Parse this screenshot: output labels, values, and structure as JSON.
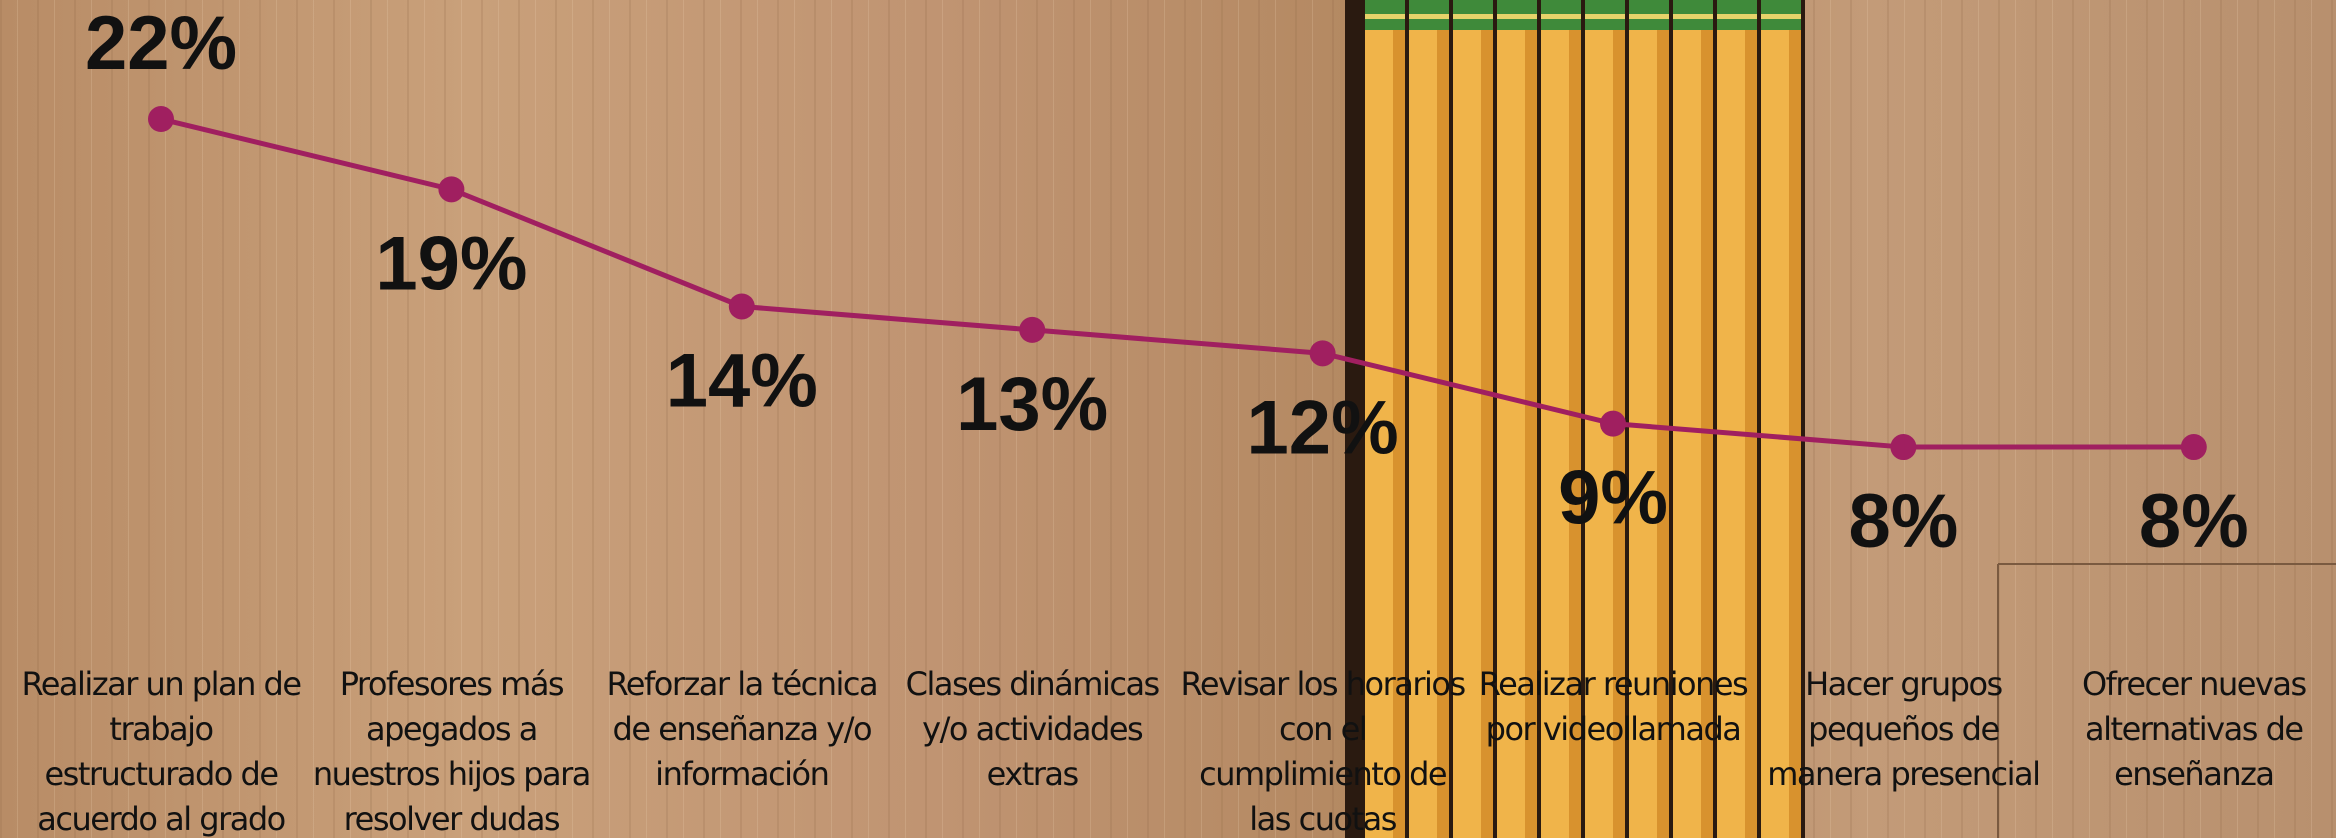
{
  "chart_data": {
    "type": "line",
    "categories": [
      "Realizar un plan de trabajo estructurado de acuerdo al grado",
      "Profesores más apegados a nuestros hijos para resolver dudas",
      "Reforzar la técnica de enseñanza y/o información",
      "Clases dinámicas y/o actividades extras",
      "Revisar los horarios con el cumplimiento de las cuotas",
      "Realizar reuniones por videollamada",
      "Hacer grupos pequeños de manera presencial",
      "Ofrecer nuevas alternativas de enseñanza"
    ],
    "values": [
      22,
      19,
      14,
      13,
      12,
      9,
      8,
      8
    ],
    "value_labels": [
      "22%",
      "19%",
      "14%",
      "13%",
      "12%",
      "9%",
      "8%",
      "8%"
    ],
    "color": "#a01f60"
  }
}
